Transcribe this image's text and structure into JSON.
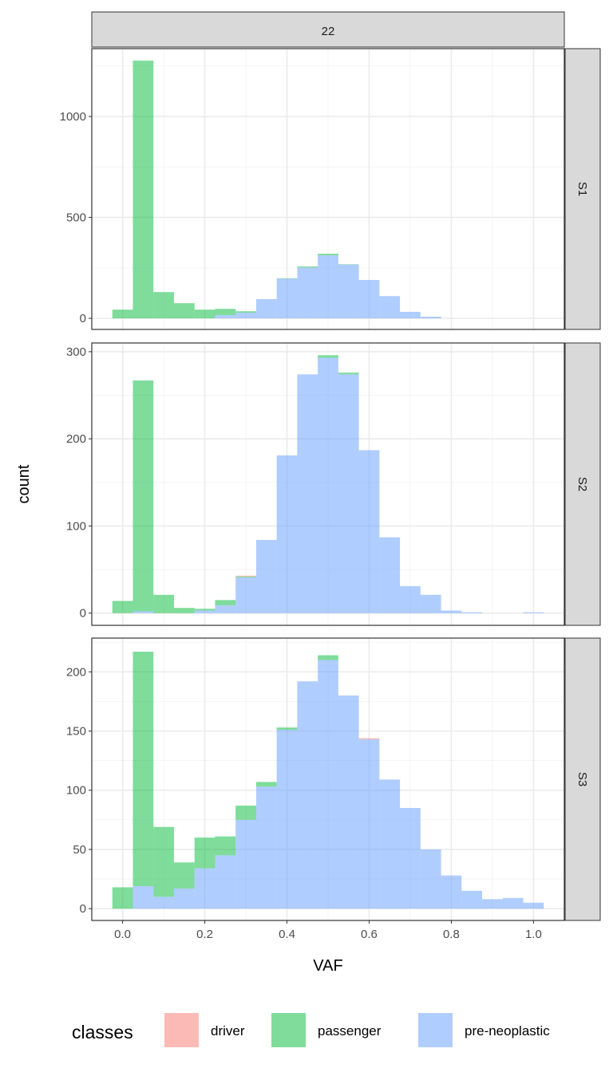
{
  "chart_data": {
    "type": "bar",
    "stacked": true,
    "facet_column_label": "22",
    "xlabel": "VAF",
    "ylabel": "count",
    "xlim": [
      -0.075,
      1.075
    ],
    "xticks": [
      0.0,
      0.2,
      0.4,
      0.6,
      0.8,
      1.0
    ],
    "xtick_labels": [
      "0.0",
      "0.2",
      "0.4",
      "0.6",
      "0.8",
      "1.0"
    ],
    "bin_centers": [
      0,
      0.05,
      0.1,
      0.15,
      0.2,
      0.25,
      0.3,
      0.35,
      0.4,
      0.45,
      0.5,
      0.55,
      0.6,
      0.65,
      0.7,
      0.75,
      0.8,
      0.85,
      0.9,
      0.95,
      1.0
    ],
    "bin_width": 0.05,
    "legend": {
      "title": "classes",
      "position": "bottom",
      "entries": [
        "driver",
        "passenger",
        "pre-neoplastic"
      ]
    },
    "colors": {
      "driver": "#F8766D",
      "passenger": "#00BA38",
      "pre-neoplastic": "#619CFF"
    },
    "panels": [
      {
        "label": "S1",
        "ylim": [
          -55,
          1336
        ],
        "yticks": [
          0,
          500,
          1000
        ],
        "ytick_labels": [
          "0",
          "500",
          "1000"
        ],
        "yminor": [
          250,
          750,
          1250
        ],
        "series": [
          {
            "name": "pre-neoplastic",
            "values": [
              0,
              0,
              0,
              0,
              0,
              16,
              28,
              95,
              196,
              252,
              312,
              266,
              190,
              110,
              32,
              8,
              0,
              0,
              0,
              0,
              0
            ]
          },
          {
            "name": "passenger",
            "values": [
              43,
              1277,
              130,
              75,
              43,
              31,
              7,
              0,
              2,
              5,
              8,
              2,
              0,
              0,
              0,
              0,
              0,
              0,
              0,
              0,
              0
            ]
          },
          {
            "name": "driver",
            "values": [
              0,
              0,
              0,
              0,
              0,
              0,
              0,
              0,
              0,
              0,
              0,
              0,
              0,
              0,
              0,
              0,
              0,
              0,
              0,
              0,
              0
            ]
          }
        ]
      },
      {
        "label": "S2",
        "ylim": [
          -14,
          310
        ],
        "yticks": [
          0,
          100,
          200,
          300
        ],
        "ytick_labels": [
          "0",
          "100",
          "200",
          "300"
        ],
        "yminor": [
          50,
          150,
          250
        ],
        "series": [
          {
            "name": "pre-neoplastic",
            "values": [
              0,
              2,
              0,
              0,
              3,
              9,
              41,
              84,
              181,
              274,
              293,
              274,
              187,
              87,
              31,
              21,
              3,
              1,
              0,
              0,
              1
            ]
          },
          {
            "name": "passenger",
            "values": [
              14,
              265,
              21,
              6,
              2,
              6,
              1,
              0,
              0,
              0,
              3,
              2,
              0,
              0,
              0,
              0,
              0,
              0,
              0,
              0,
              0
            ]
          },
          {
            "name": "driver",
            "values": [
              0,
              0,
              0,
              0,
              0,
              0,
              1,
              0,
              0,
              0,
              0,
              0,
              0,
              0,
              0,
              0,
              0,
              0,
              0,
              0,
              0
            ]
          }
        ]
      },
      {
        "label": "S3",
        "ylim": [
          -10,
          228.5
        ],
        "yticks": [
          0,
          50,
          100,
          150,
          200
        ],
        "ytick_labels": [
          "0",
          "50",
          "100",
          "150",
          "200"
        ],
        "yminor": [
          25,
          75,
          125,
          175,
          225
        ],
        "series": [
          {
            "name": "pre-neoplastic",
            "values": [
              0,
              19,
              10,
              17,
              34,
              45,
              75,
              103,
              151,
              192,
              210,
              180,
              143,
              109,
              85,
              50,
              28,
              15,
              8,
              9,
              5
            ]
          },
          {
            "name": "passenger",
            "values": [
              18,
              198,
              59,
              22,
              26,
              16,
              12,
              4,
              2,
              0,
              4,
              0,
              0,
              0,
              0,
              0,
              0,
              0,
              0,
              0,
              0
            ]
          },
          {
            "name": "driver",
            "values": [
              0,
              0,
              0,
              0,
              0,
              0,
              0,
              0,
              0,
              0,
              0,
              0,
              1,
              0,
              0,
              0,
              0,
              0,
              0,
              0,
              0
            ]
          }
        ]
      }
    ]
  }
}
